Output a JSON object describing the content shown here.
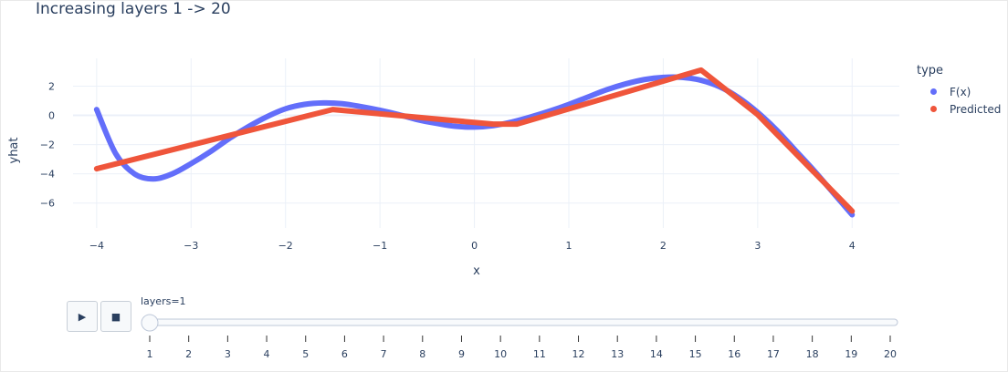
{
  "title": "Increasing layers 1 -> 20",
  "legend": {
    "title": "type",
    "items": [
      {
        "label": "F(x)",
        "color": "#636efa"
      },
      {
        "label": "Predicted",
        "color": "#ef553b"
      }
    ]
  },
  "controls": {
    "play_icon": "play-icon",
    "stop_icon": "stop-icon",
    "play_glyph": "▶",
    "stop_glyph": "■"
  },
  "slider": {
    "prefix": "layers=",
    "value": 1,
    "label": "layers=1",
    "ticks": [
      "1",
      "2",
      "3",
      "4",
      "5",
      "6",
      "7",
      "8",
      "9",
      "10",
      "11",
      "12",
      "13",
      "14",
      "15",
      "16",
      "17",
      "18",
      "19",
      "20"
    ]
  },
  "chart_data": {
    "type": "line",
    "title": "Increasing layers 1 -> 20",
    "xlabel": "x",
    "ylabel": "yhat",
    "xlim": [
      -4.25,
      4.5
    ],
    "ylim": [
      -7.7,
      3.9
    ],
    "xticks": [
      -4,
      -3,
      -2,
      -1,
      0,
      1,
      2,
      3,
      4
    ],
    "yticks": [
      -6,
      -4,
      -2,
      0,
      2
    ],
    "grid": true,
    "legend_position": "right",
    "series": [
      {
        "name": "F(x)",
        "color": "#636efa",
        "x": [
          -4.0,
          -3.8,
          -3.6,
          -3.4,
          -3.2,
          -3.0,
          -2.8,
          -2.6,
          -2.4,
          -2.2,
          -2.0,
          -1.8,
          -1.6,
          -1.4,
          -1.2,
          -1.0,
          -0.8,
          -0.6,
          -0.4,
          -0.2,
          0.0,
          0.2,
          0.4,
          0.6,
          0.8,
          1.0,
          1.2,
          1.4,
          1.6,
          1.8,
          2.0,
          2.2,
          2.4,
          2.6,
          2.8,
          3.0,
          3.2,
          3.4,
          3.6,
          3.8,
          4.0
        ],
        "y": [
          0.4,
          -2.6,
          -4.0,
          -4.35,
          -4.0,
          -3.3,
          -2.5,
          -1.6,
          -0.8,
          -0.1,
          0.45,
          0.75,
          0.85,
          0.8,
          0.6,
          0.35,
          0.05,
          -0.3,
          -0.55,
          -0.75,
          -0.8,
          -0.7,
          -0.45,
          -0.1,
          0.3,
          0.75,
          1.25,
          1.75,
          2.15,
          2.45,
          2.6,
          2.6,
          2.4,
          1.95,
          1.2,
          0.2,
          -1.0,
          -2.4,
          -3.8,
          -5.3,
          -6.8
        ]
      },
      {
        "name": "Predicted",
        "color": "#ef553b",
        "x": [
          -4.0,
          -1.5,
          0.2,
          0.45,
          2.4,
          3.0,
          4.0
        ],
        "y": [
          -3.65,
          0.4,
          -0.6,
          -0.6,
          3.1,
          0.05,
          -6.55
        ]
      }
    ]
  }
}
